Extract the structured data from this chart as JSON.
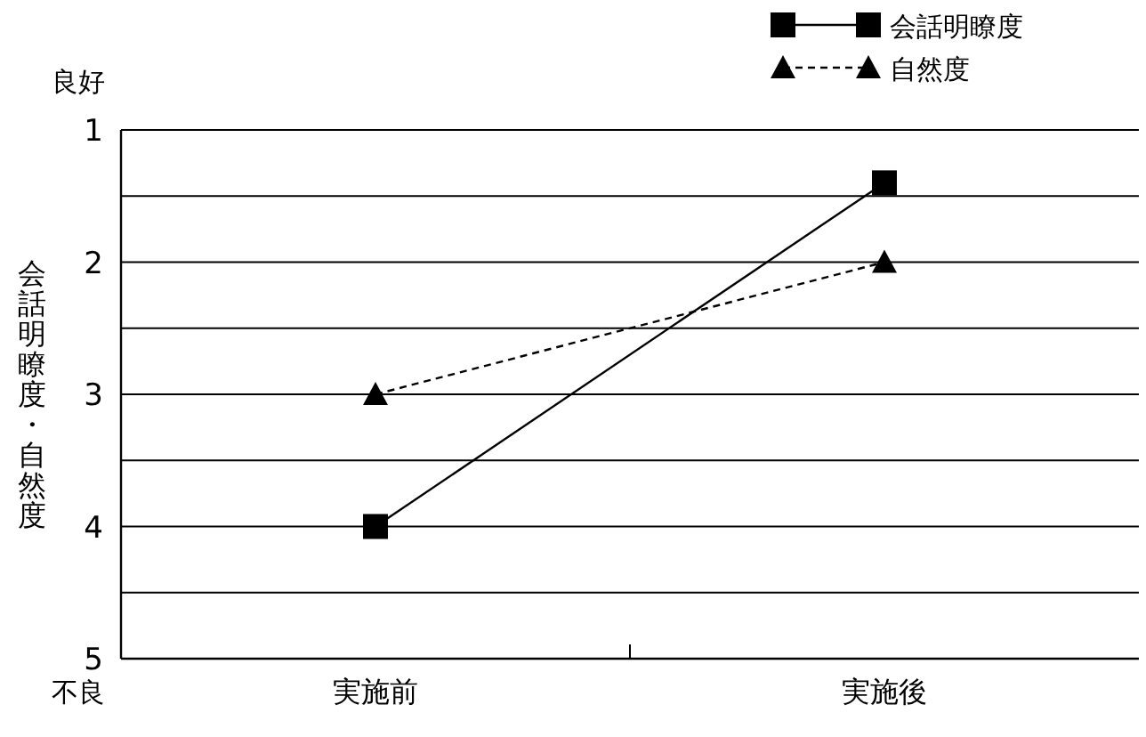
{
  "chart_data": {
    "type": "line",
    "ylabel": "会話明瞭度・自然度",
    "categories": [
      "実施前",
      "実施後"
    ],
    "series": [
      {
        "name": "会話明瞭度",
        "color": "#000000",
        "values": [
          4.0,
          1.4
        ],
        "marker": "square",
        "line_style": "solid"
      },
      {
        "name": "自然度",
        "color": "#000000",
        "values": [
          3.0,
          2.0
        ],
        "marker": "triangle",
        "line_style": "dashed"
      }
    ],
    "ylim": [
      5,
      1
    ],
    "yticks": [
      1,
      {
        "value": 1.5,
        "label": null
      },
      2,
      {
        "value": 2.5,
        "label": null
      },
      3,
      {
        "value": 3.5,
        "label": null
      },
      4,
      {
        "value": 4.5,
        "label": null
      },
      5
    ],
    "grid": "y",
    "legend": "top right",
    "annotations": [
      "良好",
      "不良"
    ]
  }
}
